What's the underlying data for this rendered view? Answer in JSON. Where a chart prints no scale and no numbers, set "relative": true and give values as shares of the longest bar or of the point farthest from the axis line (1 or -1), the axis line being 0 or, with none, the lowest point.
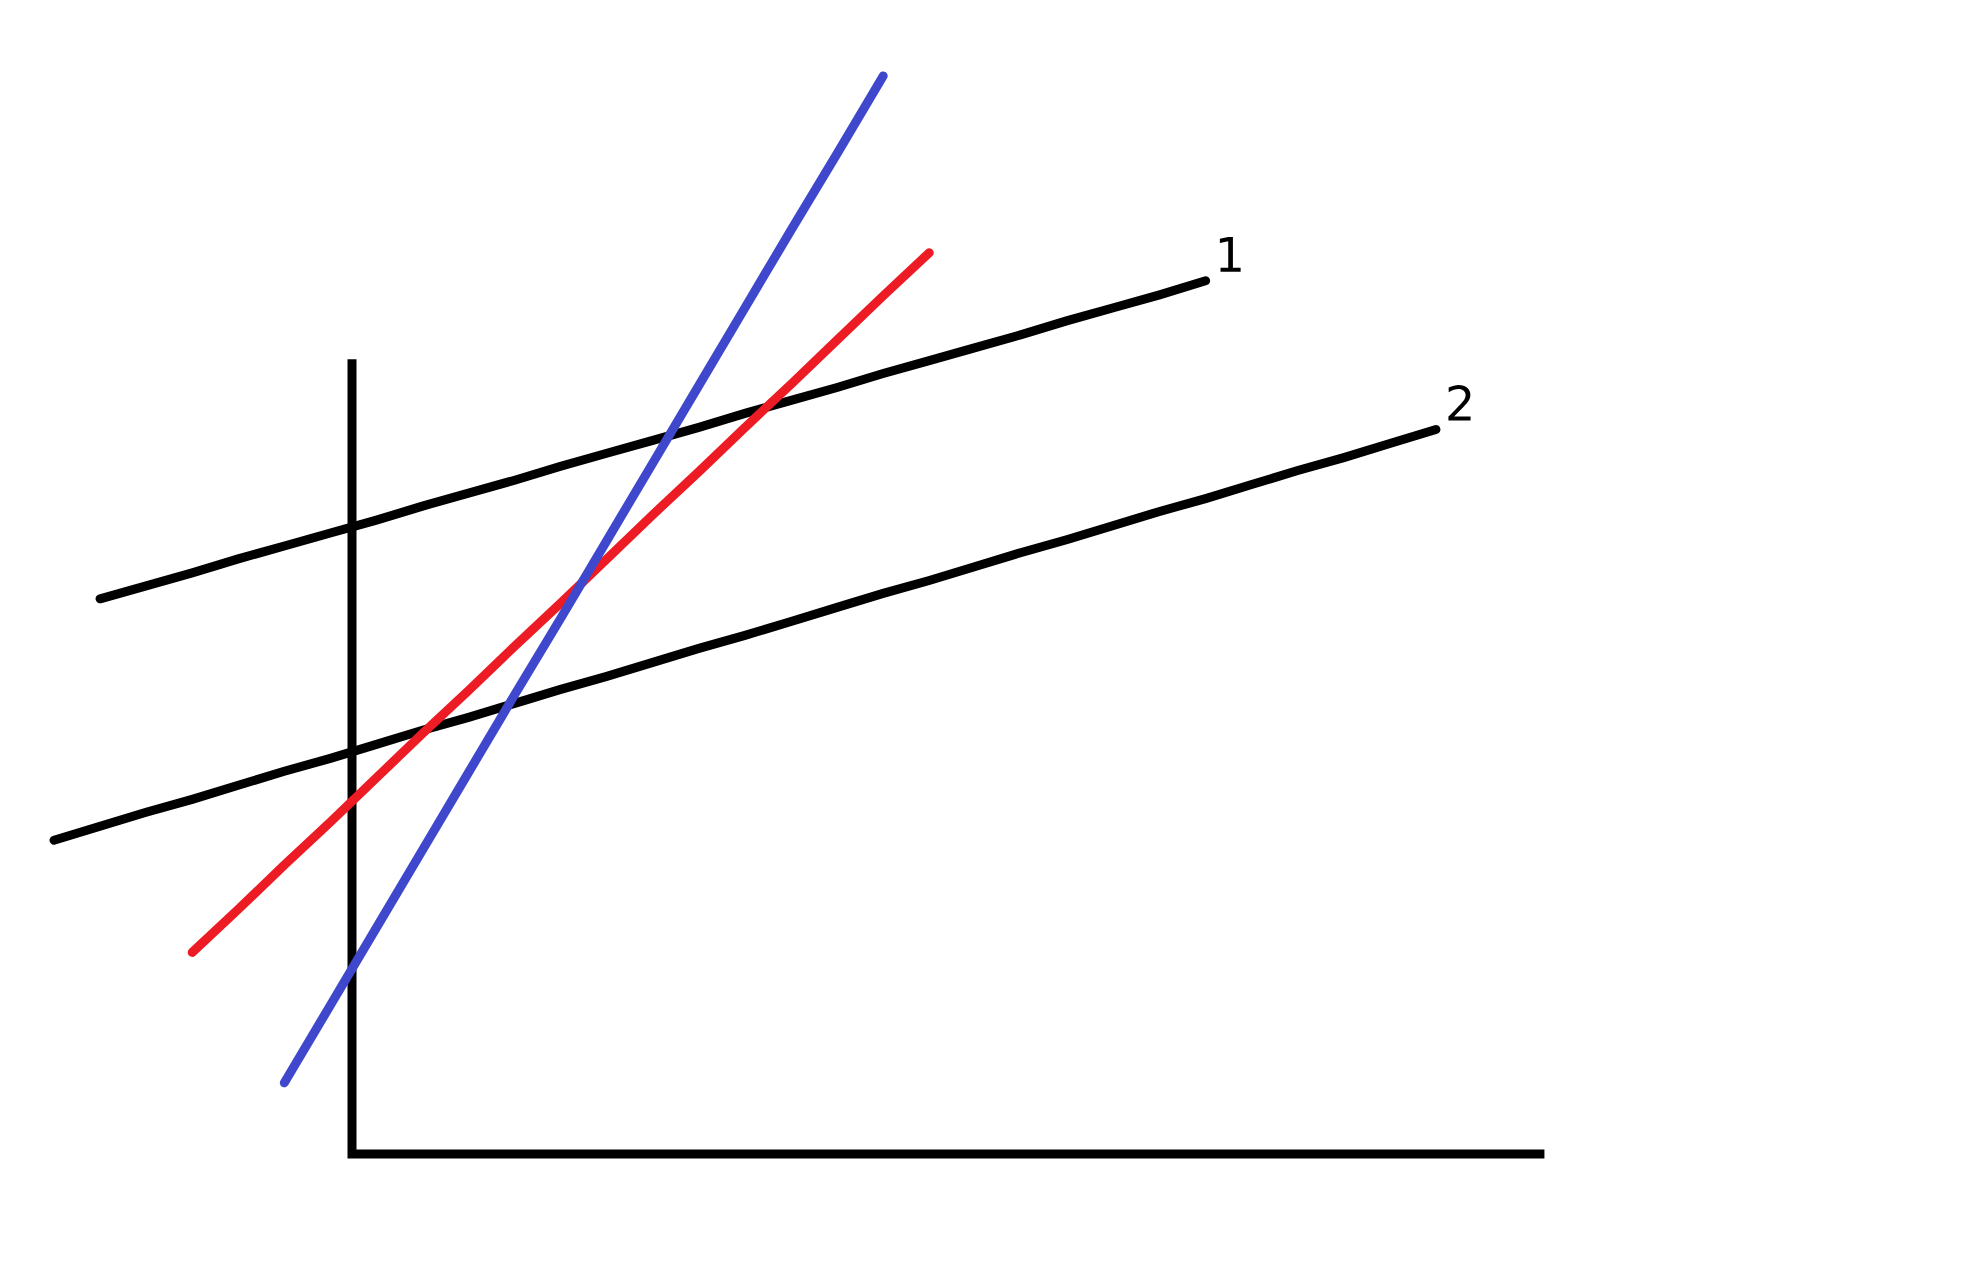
{
  "chart_data": {
    "type": "line",
    "relative": true,
    "categories": [
      null,
      null,
      null,
      null,
      null,
      null,
      null,
      null,
      null,
      null,
      null,
      null,
      null,
      null,
      null,
      null,
      null,
      null,
      null,
      null,
      null,
      null,
      null,
      null,
      null,
      null,
      null,
      null,
      null,
      null,
      null
    ],
    "series": [
      {
        "name": "1",
        "color": "#000000",
        "values": [
          null,
          0.515,
          0.527,
          0.539,
          0.552,
          0.564,
          0.576,
          0.588,
          0.601,
          0.613,
          0.625,
          0.638,
          0.65,
          0.662,
          0.674,
          0.687,
          0.699,
          0.711,
          0.724,
          0.736,
          0.748,
          0.76,
          0.773,
          0.785,
          0.797,
          0.81,
          null,
          null,
          null,
          null,
          null
        ]
      },
      {
        "name": "2",
        "color": "#000000",
        "values": [
          0.291,
          0.304,
          0.317,
          0.329,
          0.342,
          0.355,
          0.367,
          0.38,
          0.393,
          0.405,
          0.418,
          0.431,
          0.443,
          0.456,
          0.469,
          0.481,
          0.494,
          0.507,
          0.52,
          0.532,
          0.545,
          0.558,
          0.57,
          0.583,
          0.596,
          0.608,
          0.621,
          0.634,
          0.646,
          0.659,
          0.672
        ]
      },
      {
        "color": "#ed1c24",
        "values": [
          null,
          null,
          null,
          0.187,
          0.227,
          0.268,
          0.308,
          0.349,
          0.39,
          0.43,
          0.471,
          0.511,
          0.552,
          0.593,
          0.633,
          0.674,
          0.714,
          0.755,
          0.796,
          0.836,
          null,
          null,
          null,
          null,
          null,
          null,
          null,
          null,
          null,
          null,
          null
        ]
      },
      {
        "color": "#3f48cc",
        "values": [
          null,
          null,
          null,
          null,
          null,
          0.066,
          0.138,
          0.21,
          0.282,
          0.354,
          0.426,
          0.497,
          0.569,
          0.641,
          0.713,
          0.785,
          0.857,
          0.928,
          1.0,
          null,
          null,
          null,
          null,
          null,
          null,
          null,
          null,
          null,
          null,
          null,
          null
        ]
      }
    ]
  }
}
